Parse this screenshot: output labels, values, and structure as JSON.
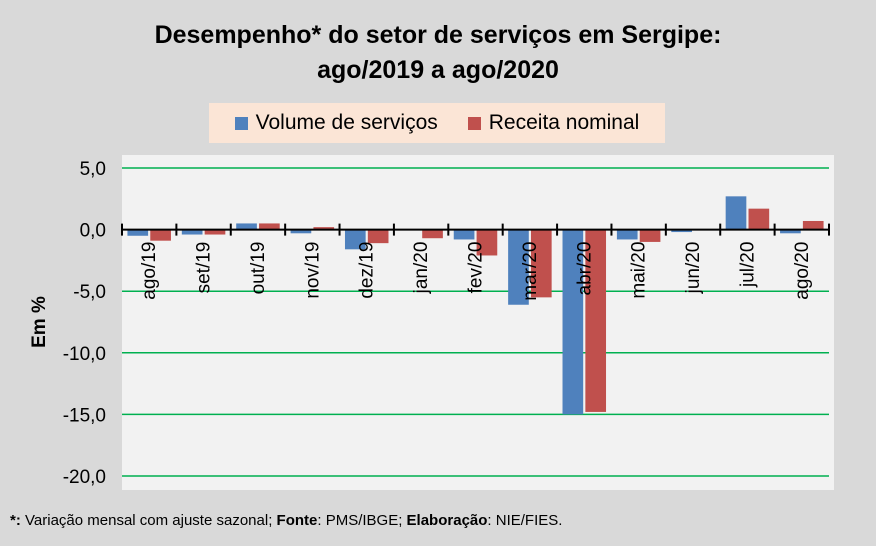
{
  "chart_data": {
    "type": "bar",
    "title_line1": "Desempenho* do setor de serviços em Sergipe:",
    "title_line2": "ago/2019 a ago/2020",
    "ylabel": "Em %",
    "ylim": [
      -20,
      5
    ],
    "yticks": [
      "5,0",
      "0,0",
      "-5,0",
      "-10,0",
      "-15,0",
      "-20,0"
    ],
    "ytick_values": [
      5,
      0,
      -5,
      -10,
      -15,
      -20
    ],
    "categories": [
      "ago/19",
      "set/19",
      "out/19",
      "nov/19",
      "dez/19",
      "jan/20",
      "fev/20",
      "mar/20",
      "abr/20",
      "mai/20",
      "jun/20",
      "jul/20",
      "ago/20"
    ],
    "series": [
      {
        "name": "Volume de serviços",
        "color": "#4f81bd",
        "values": [
          -0.5,
          -0.4,
          0.5,
          -0.3,
          -1.6,
          0.0,
          -0.8,
          -6.1,
          -15.0,
          -0.8,
          -0.2,
          2.7,
          -0.3
        ]
      },
      {
        "name": "Receita nominal",
        "color": "#c0504d",
        "values": [
          -0.9,
          -0.4,
          0.5,
          0.2,
          -1.1,
          -0.7,
          -2.1,
          -5.5,
          -14.8,
          -1.0,
          0.0,
          1.7,
          0.7
        ]
      }
    ],
    "grid": true,
    "legend_position": "top"
  },
  "footnote": {
    "p1": "*:",
    "p2": " Variação mensal com ajuste sazonal; ",
    "p3": "Fonte",
    "p4": ": PMS/IBGE; ",
    "p5": "Elaboração",
    "p6": ": NIE/FIES."
  }
}
